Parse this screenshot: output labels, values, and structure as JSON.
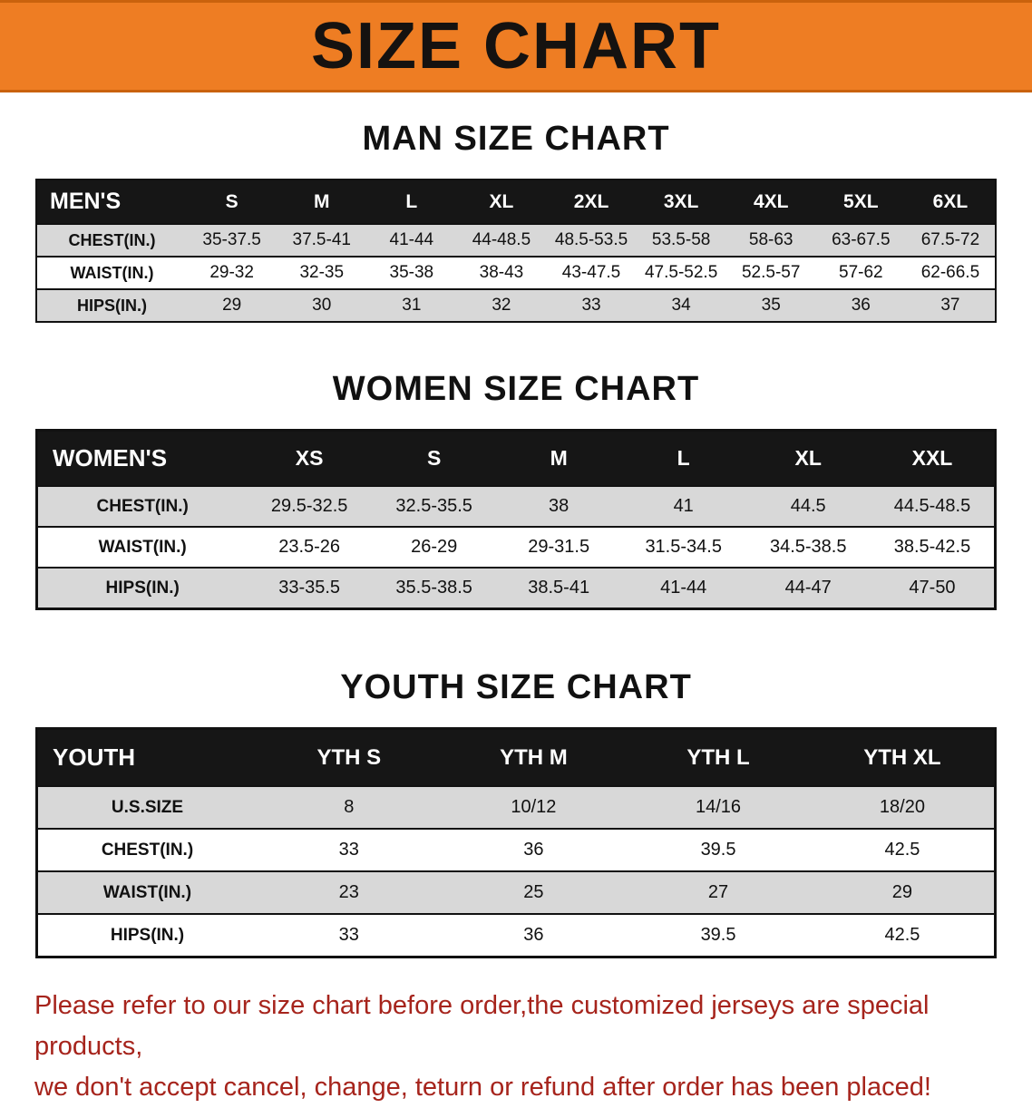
{
  "banner": {
    "title": "SIZE CHART",
    "bg_color": "#ee7d23"
  },
  "chart_data": [
    {
      "type": "table",
      "title": "MAN SIZE CHART",
      "columns": [
        "MEN'S",
        "S",
        "M",
        "L",
        "XL",
        "2XL",
        "3XL",
        "4XL",
        "5XL",
        "6XL"
      ],
      "rows": [
        [
          "CHEST(IN.)",
          "35-37.5",
          "37.5-41",
          "41-44",
          "44-48.5",
          "48.5-53.5",
          "53.5-58",
          "58-63",
          "63-67.5",
          "67.5-72"
        ],
        [
          "WAIST(IN.)",
          "29-32",
          "32-35",
          "35-38",
          "38-43",
          "43-47.5",
          "47.5-52.5",
          "52.5-57",
          "57-62",
          "62-66.5"
        ],
        [
          "HIPS(IN.)",
          "29",
          "30",
          "31",
          "32",
          "33",
          "34",
          "35",
          "36",
          "37"
        ]
      ]
    },
    {
      "type": "table",
      "title": "WOMEN SIZE CHART",
      "columns": [
        "WOMEN'S",
        "XS",
        "S",
        "M",
        "L",
        "XL",
        "XXL"
      ],
      "rows": [
        [
          "CHEST(IN.)",
          "29.5-32.5",
          "32.5-35.5",
          "38",
          "41",
          "44.5",
          "44.5-48.5"
        ],
        [
          "WAIST(IN.)",
          "23.5-26",
          "26-29",
          "29-31.5",
          "31.5-34.5",
          "34.5-38.5",
          "38.5-42.5"
        ],
        [
          "HIPS(IN.)",
          "33-35.5",
          "35.5-38.5",
          "38.5-41",
          "41-44",
          "44-47",
          "47-50"
        ]
      ]
    },
    {
      "type": "table",
      "title": "YOUTH SIZE CHART",
      "columns": [
        "YOUTH",
        "YTH S",
        "YTH M",
        "YTH L",
        "YTH XL"
      ],
      "rows": [
        [
          "U.S.SIZE",
          "8",
          "10/12",
          "14/16",
          "18/20"
        ],
        [
          "CHEST(IN.)",
          "33",
          "36",
          "39.5",
          "42.5"
        ],
        [
          "WAIST(IN.)",
          "23",
          "25",
          "27",
          "29"
        ],
        [
          "HIPS(IN.)",
          "33",
          "36",
          "39.5",
          "42.5"
        ]
      ]
    }
  ],
  "footer": {
    "line1": "Please refer to our size chart before order,the customized jerseys are special products,",
    "line2": "we don't accept cancel, change, teturn or refund after order has been placed!",
    "text_color": "#a6241c"
  }
}
